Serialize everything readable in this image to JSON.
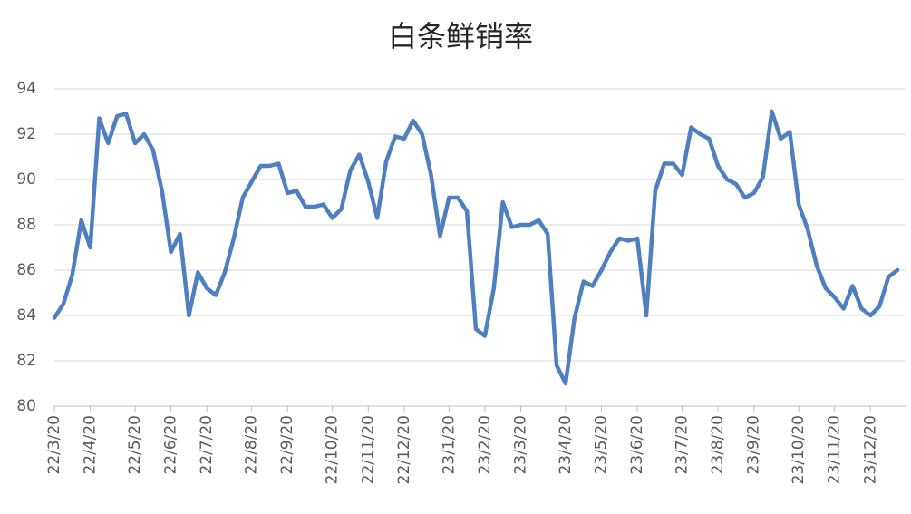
{
  "chart_data": {
    "type": "line",
    "title": "白条鲜销率",
    "categories": [
      "22/3/20",
      null,
      null,
      null,
      "22/4/20",
      null,
      null,
      null,
      null,
      "22/5/20",
      null,
      null,
      null,
      "22/6/20",
      null,
      null,
      null,
      "22/7/20",
      null,
      null,
      null,
      null,
      "22/8/20",
      null,
      null,
      null,
      "22/9/20",
      null,
      null,
      null,
      null,
      "22/10/20",
      null,
      null,
      null,
      "22/11/20",
      null,
      null,
      null,
      "22/12/20",
      null,
      null,
      null,
      null,
      "23/1/20",
      null,
      null,
      null,
      "23/2/20",
      null,
      null,
      null,
      "23/3/20",
      null,
      null,
      null,
      null,
      "23/4/20",
      null,
      null,
      null,
      "23/5/20",
      null,
      null,
      null,
      "23/6/20",
      null,
      null,
      null,
      null,
      "23/7/20",
      null,
      null,
      null,
      "23/8/20",
      null,
      null,
      null,
      "23/9/20",
      null,
      null,
      null,
      null,
      "23/10/20",
      null,
      null,
      null,
      "23/11/20",
      null,
      null,
      null,
      "23/12/20",
      null,
      null,
      null
    ],
    "values": [
      83.9,
      84.5,
      85.8,
      88.2,
      87.0,
      92.7,
      91.6,
      92.8,
      92.9,
      91.6,
      92.0,
      91.3,
      89.5,
      86.8,
      87.6,
      84.0,
      85.9,
      85.2,
      84.9,
      85.9,
      87.4,
      89.2,
      89.9,
      90.6,
      90.6,
      90.7,
      89.4,
      89.5,
      88.8,
      88.8,
      88.9,
      88.3,
      88.7,
      90.4,
      91.1,
      89.9,
      88.3,
      90.8,
      91.9,
      91.8,
      92.6,
      92.0,
      90.2,
      87.5,
      89.2,
      89.2,
      88.6,
      83.4,
      83.1,
      85.2,
      89.0,
      87.9,
      88.0,
      88.0,
      88.2,
      87.6,
      81.8,
      81.0,
      83.9,
      85.5,
      85.3,
      86.0,
      86.8,
      87.4,
      87.3,
      87.4,
      84.0,
      89.5,
      90.7,
      90.7,
      90.2,
      92.3,
      92.0,
      91.8,
      90.6,
      90.0,
      89.8,
      89.2,
      89.4,
      90.1,
      93.0,
      91.8,
      92.1,
      88.9,
      87.8,
      86.2,
      85.2,
      84.8,
      84.3,
      85.3,
      84.3,
      84.0,
      84.4,
      85.7,
      86.0
    ],
    "color": "#4e7fbf",
    "ylim": [
      80,
      94
    ],
    "yticks": [
      80,
      82,
      84,
      86,
      88,
      90,
      92,
      94
    ],
    "grid": true
  }
}
